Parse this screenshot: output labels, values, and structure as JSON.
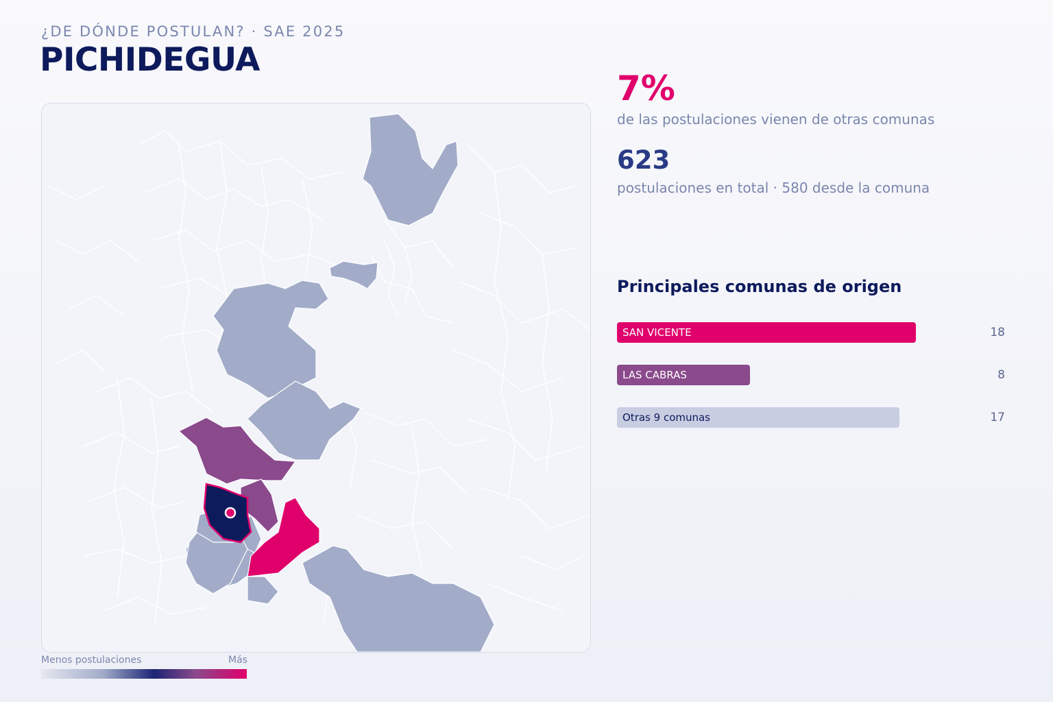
{
  "header": {
    "kicker": "¿DE DÓNDE POSTULAN? · SAE 2025",
    "title": "PICHIDEGUA"
  },
  "map": {
    "legend": {
      "low_label": "Menos postulaciones",
      "high_label": "Más"
    },
    "colors": {
      "background": "#f2f4f9",
      "boundary": "#ffffff",
      "low": "#a2acc9",
      "mid": "#8a4a8c",
      "high": "#e0006b",
      "selected": "#0d1a5c"
    }
  },
  "stats": {
    "external_pct": "7%",
    "external_pct_desc": "de las postulaciones vienen de otras comunas",
    "total": "623",
    "total_desc": "postulaciones en total · 580 desde la comuna"
  },
  "origins": {
    "heading": "Principales comunas de origen",
    "max_value": 18,
    "items": [
      {
        "label": "SAN VICENTE",
        "value": 18,
        "color": "#e0006b",
        "text_color": "#ffffff"
      },
      {
        "label": "LAS CABRAS",
        "value": 8,
        "color": "#8a4a8c",
        "text_color": "#ffffff"
      },
      {
        "label": "Otras 9 comunas",
        "value": 17,
        "color": "#c8cde2",
        "text_color": "#0d1a5c"
      }
    ]
  }
}
